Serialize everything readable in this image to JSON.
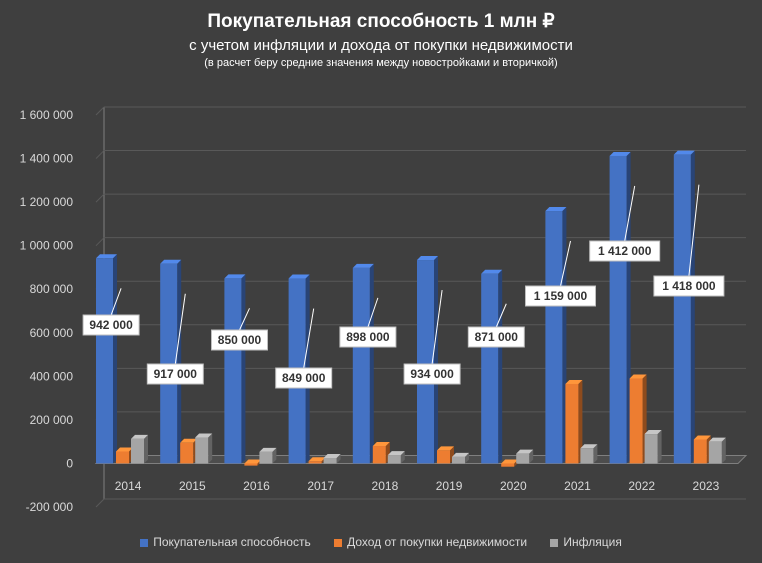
{
  "chart_data": {
    "type": "bar",
    "title": "Покупательная способность 1 млн ₽",
    "subtitle": "с учетом инфляции и дохода от покупки недвижимости",
    "subtitle2": "(в расчет беру средние значения между новостройками и вторичкой)",
    "categories": [
      "2014",
      "2015",
      "2016",
      "2017",
      "2018",
      "2019",
      "2020",
      "2021",
      "2022",
      "2023"
    ],
    "series": [
      {
        "name": "Покупательная способность",
        "color": "#4472c4",
        "values": [
          942000,
          917000,
          850000,
          849000,
          898000,
          934000,
          871000,
          1159000,
          1412000,
          1418000
        ]
      },
      {
        "name": "Доход от покупки недвижимости",
        "color": "#ed7d31",
        "values": [
          55000,
          95000,
          -10000,
          10000,
          80000,
          60000,
          -15000,
          365000,
          390000,
          110000
        ]
      },
      {
        "name": "Инфляция",
        "color": "#a5a5a5",
        "values": [
          113000,
          119000,
          53000,
          25000,
          38000,
          30000,
          45000,
          70000,
          135000,
          100000
        ]
      }
    ],
    "data_labels": [
      "942 000",
      "917 000",
      "850 000",
      "849 000",
      "898 000",
      "934 000",
      "871 000",
      "1 159 000",
      "1 412 000",
      "1 418 000"
    ],
    "y_ticks": [
      "-200 000",
      "0",
      "200 000",
      "400 000",
      "600 000",
      "800 000",
      "1 000 000",
      "1 200 000",
      "1 400 000",
      "1 600 000"
    ],
    "ylim": [
      -200000,
      1600000
    ],
    "grid": true,
    "legend_position": "bottom"
  }
}
